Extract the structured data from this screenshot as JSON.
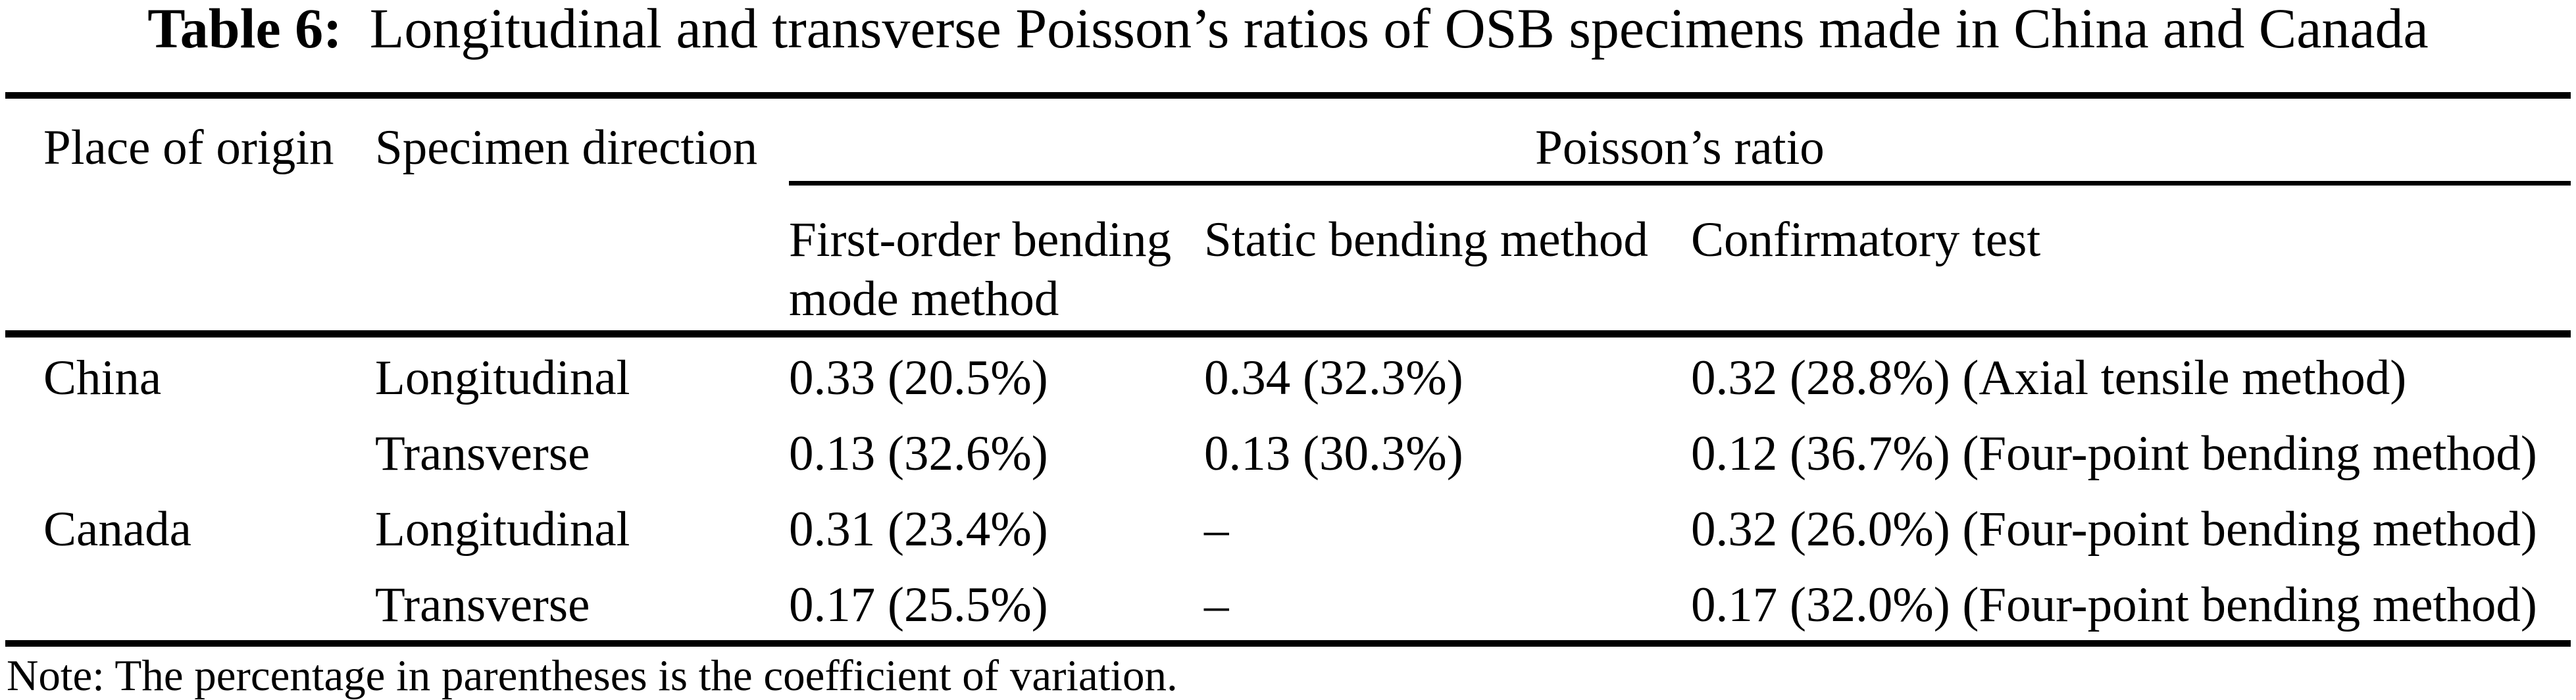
{
  "table": {
    "title_label": "Table 6:",
    "title_text": "Longitudinal and transverse Poisson’s ratios of OSB specimens made in China and Canada",
    "columns": {
      "place_of_origin": "Place of origin",
      "specimen_direction": "Specimen direction",
      "poissons_ratio_group": "Poisson’s ratio",
      "first_order_method": "First-order bending mode method",
      "static_bending_method": "Static bending method",
      "confirmatory_test": "Confirmatory test"
    },
    "rows": [
      {
        "origin": "China",
        "direction": "Longitudinal",
        "first_order": "0.33 (20.5%)",
        "static_bending": "0.34 (32.3%)",
        "confirmatory": "0.32 (28.8%) (Axial tensile method)"
      },
      {
        "origin": "",
        "direction": "Transverse",
        "first_order": "0.13 (32.6%)",
        "static_bending": "0.13 (30.3%)",
        "confirmatory": "0.12 (36.7%) (Four-point bending method)"
      },
      {
        "origin": "Canada",
        "direction": "Longitudinal",
        "first_order": "0.31 (23.4%)",
        "static_bending": "–",
        "confirmatory": "0.32 (26.0%) (Four-point bending method)"
      },
      {
        "origin": "",
        "direction": "Transverse",
        "first_order": "0.17 (25.5%)",
        "static_bending": "–",
        "confirmatory": "0.17 (32.0%) (Four-point bending method)"
      }
    ],
    "note": "Note: The percentage in parentheses is the coefficient of variation."
  },
  "colors": {
    "text": "#000000",
    "background": "#ffffff",
    "rule": "#000000"
  }
}
